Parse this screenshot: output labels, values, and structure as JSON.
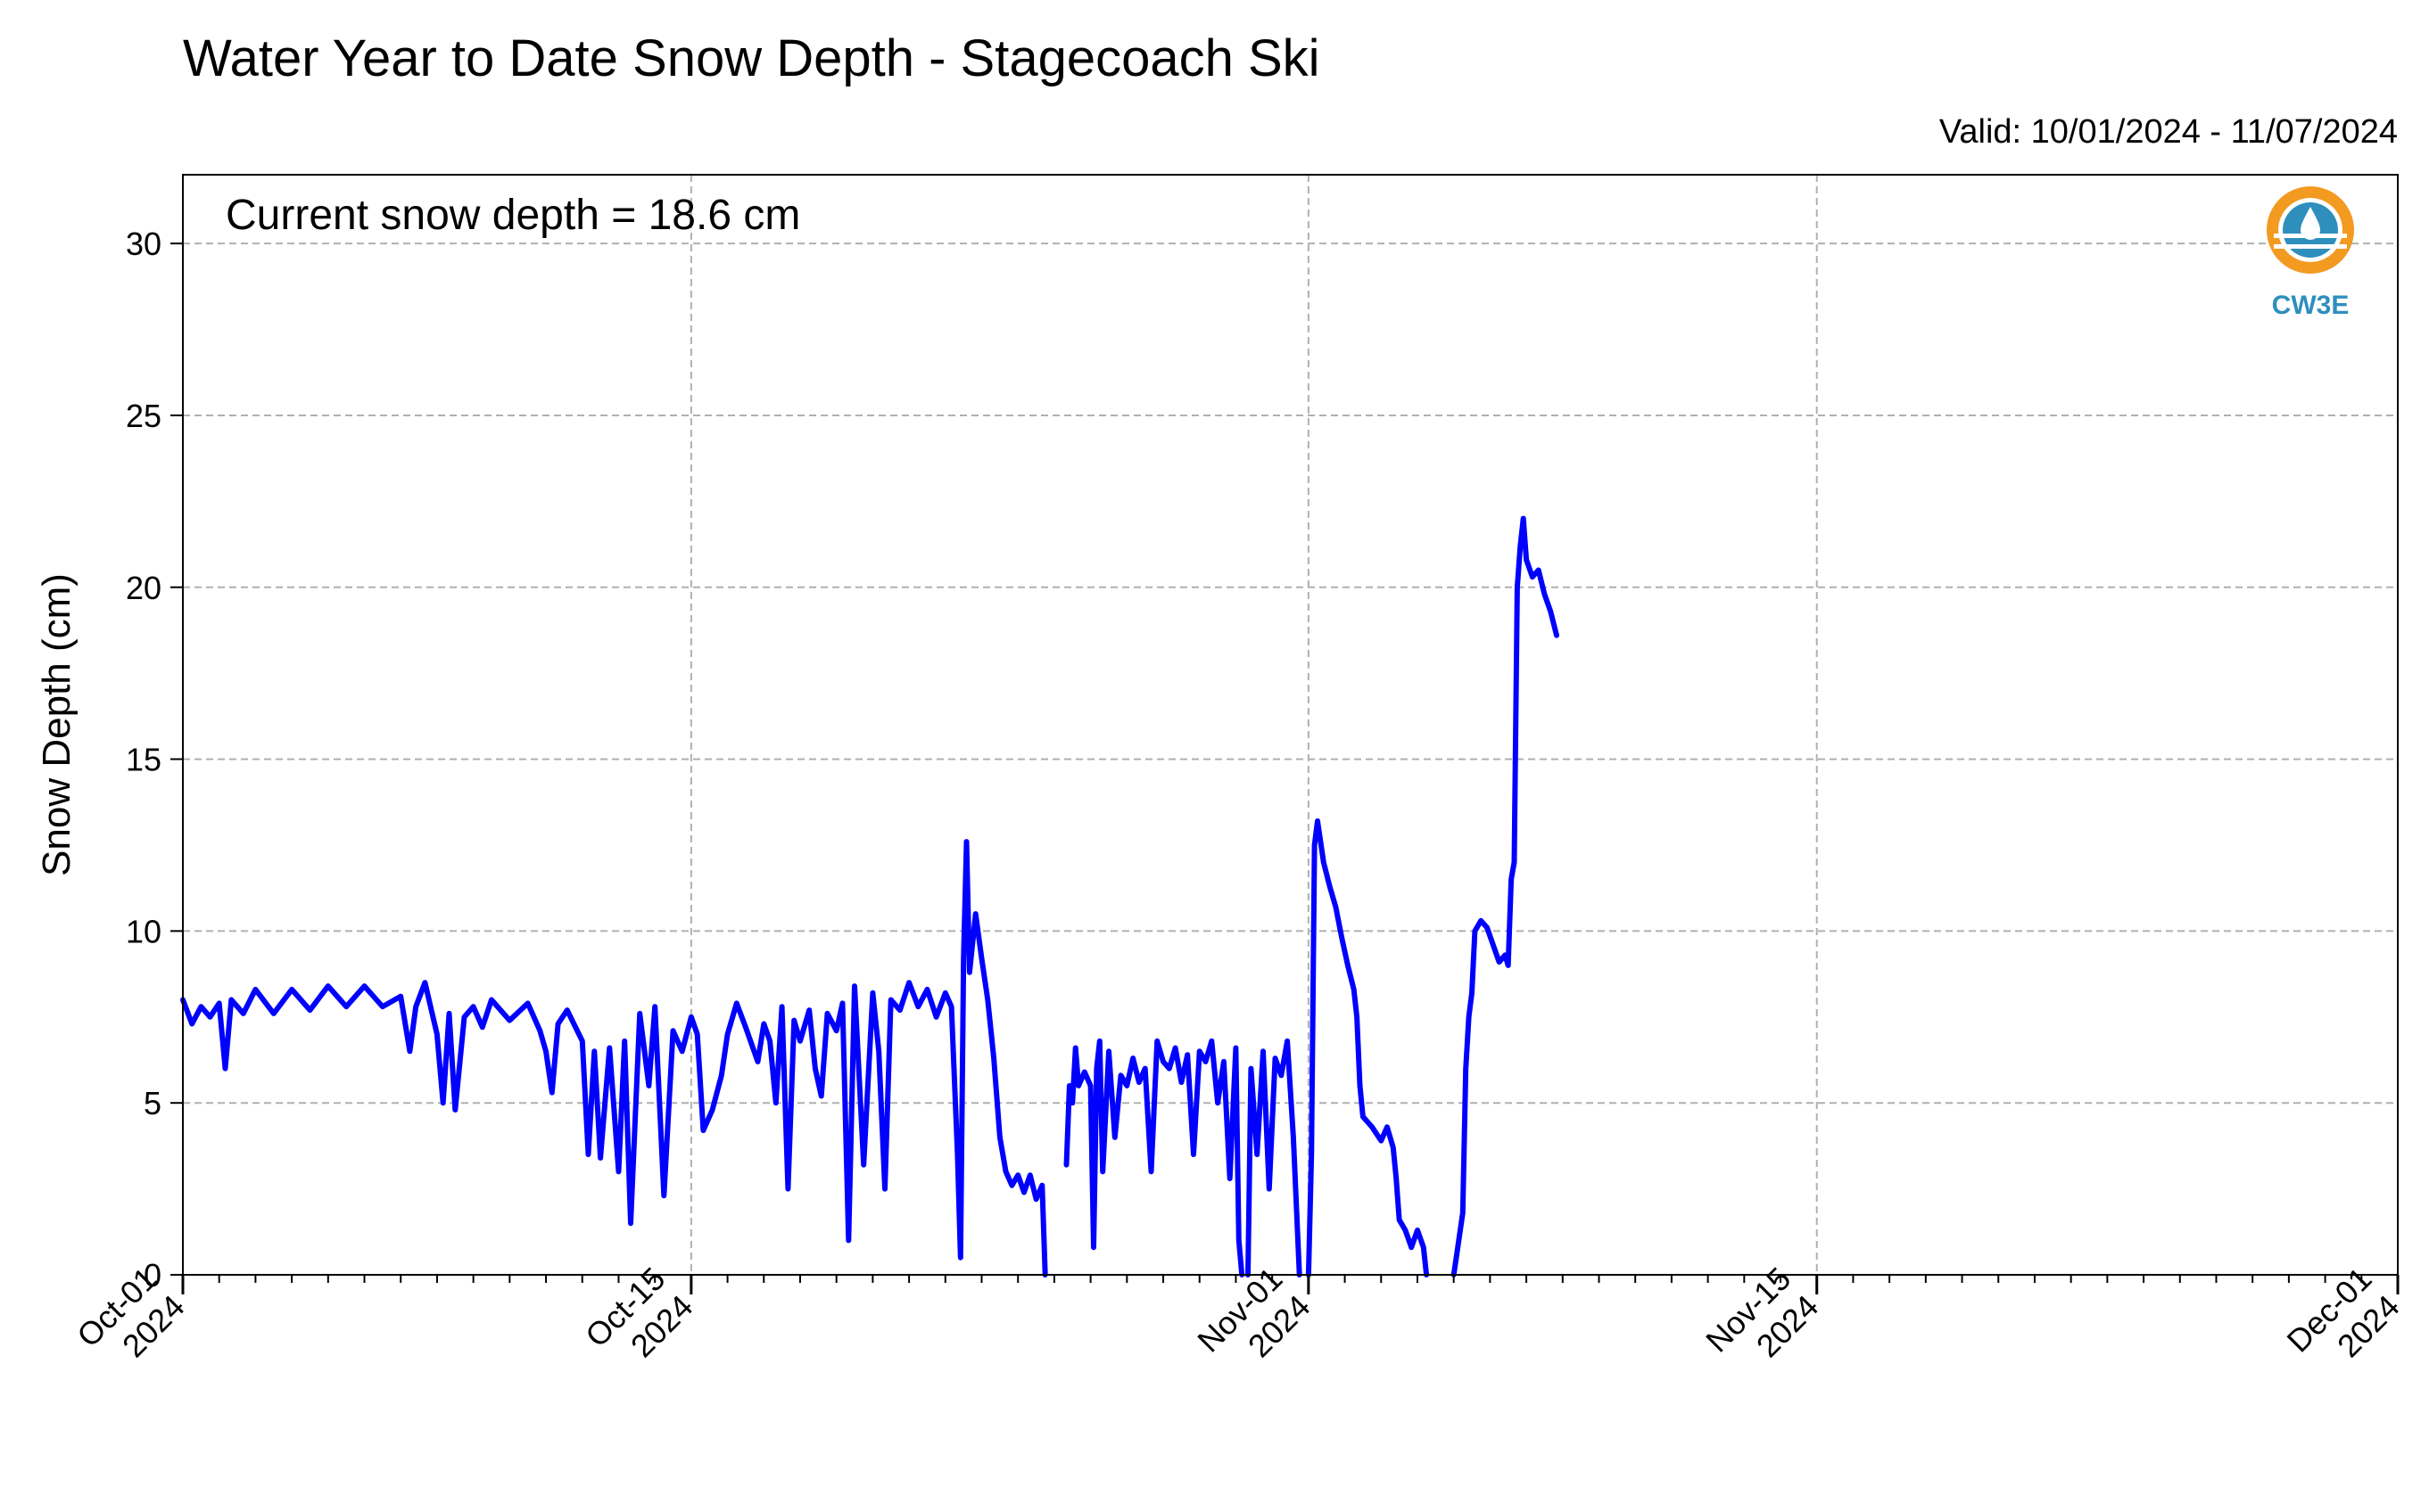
{
  "chart_data": {
    "type": "line",
    "title": "Water Year to Date Snow Depth - Stagecoach Ski",
    "valid_label": "Valid: 10/01/2024 - 11/07/2024",
    "ylabel": "Snow Depth (cm)",
    "xlabel": "",
    "annotation": "Current snow depth = 18.6 cm",
    "logo_text": "CW3E",
    "x_type": "date",
    "xlim": [
      "2024-10-01",
      "2024-12-01"
    ],
    "ylim": [
      0,
      32
    ],
    "yticks": [
      0,
      5,
      10,
      15,
      20,
      25,
      30
    ],
    "xtick_labels": [
      {
        "date": "2024-10-01",
        "label1": "Oct-01",
        "label2": "2024"
      },
      {
        "date": "2024-10-15",
        "label1": "Oct-15",
        "label2": "2024"
      },
      {
        "date": "2024-11-01",
        "label1": "Nov-01",
        "label2": "2024"
      },
      {
        "date": "2024-11-15",
        "label1": "Nov-15",
        "label2": "2024"
      },
      {
        "date": "2024-12-01",
        "label1": "Dec-01",
        "label2": "2024"
      }
    ],
    "grid": true,
    "line_color": "#0000ff",
    "series": [
      {
        "name": "",
        "segments": [
          [
            [
              "2024-10-01T00:00",
              8.0
            ],
            [
              "2024-10-01T06:00",
              7.3
            ],
            [
              "2024-10-01T12:00",
              7.8
            ],
            [
              "2024-10-01T18:00",
              7.5
            ],
            [
              "2024-10-02T00:00",
              7.9
            ],
            [
              "2024-10-02T04:00",
              6.0
            ],
            [
              "2024-10-02T08:00",
              8.0
            ],
            [
              "2024-10-02T16:00",
              7.6
            ],
            [
              "2024-10-03T00:00",
              8.3
            ],
            [
              "2024-10-03T12:00",
              7.6
            ],
            [
              "2024-10-04T00:00",
              8.3
            ],
            [
              "2024-10-04T12:00",
              7.7
            ],
            [
              "2024-10-05T00:00",
              8.4
            ],
            [
              "2024-10-05T12:00",
              7.8
            ],
            [
              "2024-10-06T00:00",
              8.4
            ],
            [
              "2024-10-06T12:00",
              7.8
            ],
            [
              "2024-10-07T00:00",
              8.1
            ],
            [
              "2024-10-07T06:00",
              6.5
            ],
            [
              "2024-10-07T10:00",
              7.8
            ],
            [
              "2024-10-07T16:00",
              8.5
            ],
            [
              "2024-10-08T00:00",
              7.0
            ],
            [
              "2024-10-08T04:00",
              5.0
            ],
            [
              "2024-10-08T08:00",
              7.6
            ],
            [
              "2024-10-08T12:00",
              4.8
            ],
            [
              "2024-10-08T18:00",
              7.5
            ],
            [
              "2024-10-09T00:00",
              7.8
            ],
            [
              "2024-10-09T06:00",
              7.2
            ],
            [
              "2024-10-09T12:00",
              8.0
            ],
            [
              "2024-10-10T00:00",
              7.4
            ],
            [
              "2024-10-10T12:00",
              7.9
            ],
            [
              "2024-10-10T20:00",
              7.1
            ],
            [
              "2024-10-11T00:00",
              6.5
            ],
            [
              "2024-10-11T04:00",
              5.3
            ],
            [
              "2024-10-11T08:00",
              7.3
            ],
            [
              "2024-10-11T14:00",
              7.7
            ],
            [
              "2024-10-12T00:00",
              6.8
            ],
            [
              "2024-10-12T04:00",
              3.5
            ],
            [
              "2024-10-12T08:00",
              6.5
            ],
            [
              "2024-10-12T12:00",
              3.4
            ],
            [
              "2024-10-12T18:00",
              6.6
            ],
            [
              "2024-10-13T00:00",
              3.0
            ],
            [
              "2024-10-13T04:00",
              6.8
            ],
            [
              "2024-10-13T08:00",
              1.5
            ],
            [
              "2024-10-13T14:00",
              7.6
            ],
            [
              "2024-10-13T20:00",
              5.5
            ],
            [
              "2024-10-14T00:00",
              7.8
            ],
            [
              "2024-10-14T06:00",
              2.3
            ],
            [
              "2024-10-14T12:00",
              7.1
            ],
            [
              "2024-10-14T18:00",
              6.5
            ],
            [
              "2024-10-15T00:00",
              7.5
            ],
            [
              "2024-10-15T04:00",
              7.0
            ],
            [
              "2024-10-15T08:00",
              4.2
            ],
            [
              "2024-10-15T14:00",
              4.8
            ],
            [
              "2024-10-15T20:00",
              5.8
            ],
            [
              "2024-10-16T00:00",
              7.0
            ],
            [
              "2024-10-16T06:00",
              7.9
            ],
            [
              "2024-10-16T12:00",
              7.2
            ],
            [
              "2024-10-16T20:00",
              6.2
            ],
            [
              "2024-10-17T00:00",
              7.3
            ],
            [
              "2024-10-17T04:00",
              6.8
            ],
            [
              "2024-10-17T08:00",
              5.0
            ],
            [
              "2024-10-17T12:00",
              7.8
            ],
            [
              "2024-10-17T16:00",
              2.5
            ],
            [
              "2024-10-17T20:00",
              7.4
            ],
            [
              "2024-10-18T00:00",
              6.8
            ],
            [
              "2024-10-18T06:00",
              7.7
            ],
            [
              "2024-10-18T10:00",
              6.0
            ],
            [
              "2024-10-18T14:00",
              5.2
            ],
            [
              "2024-10-18T18:00",
              7.6
            ],
            [
              "2024-10-19T00:00",
              7.1
            ],
            [
              "2024-10-19T04:00",
              7.9
            ],
            [
              "2024-10-19T08:00",
              1.0
            ],
            [
              "2024-10-19T12:00",
              8.4
            ],
            [
              "2024-10-19T18:00",
              3.2
            ],
            [
              "2024-10-20T00:00",
              8.2
            ],
            [
              "2024-10-20T04:00",
              6.5
            ],
            [
              "2024-10-20T08:00",
              2.5
            ],
            [
              "2024-10-20T12:00",
              8.0
            ],
            [
              "2024-10-20T18:00",
              7.7
            ],
            [
              "2024-10-21T00:00",
              8.5
            ],
            [
              "2024-10-21T06:00",
              7.8
            ],
            [
              "2024-10-21T12:00",
              8.3
            ],
            [
              "2024-10-21T18:00",
              7.5
            ],
            [
              "2024-10-22T00:00",
              8.2
            ],
            [
              "2024-10-22T04:00",
              7.8
            ],
            [
              "2024-10-22T08:00",
              3.5
            ],
            [
              "2024-10-22T10:00",
              0.5
            ],
            [
              "2024-10-22T12:00",
              9.2
            ],
            [
              "2024-10-22T14:00",
              12.6
            ],
            [
              "2024-10-22T16:00",
              8.8
            ],
            [
              "2024-10-22T20:00",
              10.5
            ],
            [
              "2024-10-23T00:00",
              9.2
            ],
            [
              "2024-10-23T04:00",
              8.0
            ],
            [
              "2024-10-23T08:00",
              6.3
            ],
            [
              "2024-10-23T12:00",
              4.0
            ],
            [
              "2024-10-23T16:00",
              3.0
            ],
            [
              "2024-10-23T20:00",
              2.6
            ],
            [
              "2024-10-24T00:00",
              2.9
            ],
            [
              "2024-10-24T04:00",
              2.4
            ],
            [
              "2024-10-24T08:00",
              2.9
            ],
            [
              "2024-10-24T12:00",
              2.2
            ],
            [
              "2024-10-24T16:00",
              2.6
            ],
            [
              "2024-10-24T18:00",
              0.0
            ]
          ],
          [
            [
              "2024-10-25T08:00",
              3.2
            ],
            [
              "2024-10-25T10:00",
              5.5
            ],
            [
              "2024-10-25T12:00",
              5.0
            ],
            [
              "2024-10-25T14:00",
              6.6
            ],
            [
              "2024-10-25T16:00",
              5.5
            ],
            [
              "2024-10-25T20:00",
              5.9
            ],
            [
              "2024-10-26T00:00",
              5.5
            ],
            [
              "2024-10-26T02:00",
              0.8
            ],
            [
              "2024-10-26T04:00",
              6.0
            ],
            [
              "2024-10-26T06:00",
              6.8
            ],
            [
              "2024-10-26T08:00",
              3.0
            ],
            [
              "2024-10-26T12:00",
              6.5
            ],
            [
              "2024-10-26T16:00",
              4.0
            ],
            [
              "2024-10-26T20:00",
              5.8
            ],
            [
              "2024-10-27T00:00",
              5.5
            ],
            [
              "2024-10-27T04:00",
              6.3
            ],
            [
              "2024-10-27T08:00",
              5.6
            ],
            [
              "2024-10-27T12:00",
              6.0
            ],
            [
              "2024-10-27T16:00",
              3.0
            ],
            [
              "2024-10-27T20:00",
              6.8
            ],
            [
              "2024-10-28T00:00",
              6.2
            ],
            [
              "2024-10-28T04:00",
              6.0
            ],
            [
              "2024-10-28T08:00",
              6.6
            ],
            [
              "2024-10-28T12:00",
              5.6
            ],
            [
              "2024-10-28T16:00",
              6.4
            ],
            [
              "2024-10-28T20:00",
              3.5
            ],
            [
              "2024-10-29T00:00",
              6.5
            ],
            [
              "2024-10-29T04:00",
              6.2
            ],
            [
              "2024-10-29T08:00",
              6.8
            ],
            [
              "2024-10-29T12:00",
              5.0
            ],
            [
              "2024-10-29T16:00",
              6.2
            ],
            [
              "2024-10-29T20:00",
              2.8
            ],
            [
              "2024-10-30T00:00",
              6.6
            ],
            [
              "2024-10-30T02:00",
              1.0
            ],
            [
              "2024-10-30T04:00",
              0.0
            ]
          ],
          [
            [
              "2024-10-30T08:00",
              0.0
            ],
            [
              "2024-10-30T10:00",
              6.0
            ],
            [
              "2024-10-30T14:00",
              3.5
            ],
            [
              "2024-10-30T18:00",
              6.5
            ],
            [
              "2024-10-30T22:00",
              2.5
            ],
            [
              "2024-10-31T02:00",
              6.3
            ],
            [
              "2024-10-31T06:00",
              5.8
            ],
            [
              "2024-10-31T10:00",
              6.8
            ],
            [
              "2024-10-31T14:00",
              4.0
            ],
            [
              "2024-10-31T16:00",
              2.0
            ],
            [
              "2024-10-31T18:00",
              0.0
            ]
          ],
          [
            [
              "2024-11-01T00:00",
              0.0
            ],
            [
              "2024-11-01T02:00",
              3.5
            ],
            [
              "2024-11-01T04:00",
              12.5
            ],
            [
              "2024-11-01T06:00",
              13.2
            ],
            [
              "2024-11-01T10:00",
              12.0
            ],
            [
              "2024-11-01T14:00",
              11.3
            ],
            [
              "2024-11-01T18:00",
              10.7
            ],
            [
              "2024-11-01T22:00",
              9.8
            ],
            [
              "2024-11-02T02:00",
              9.0
            ],
            [
              "2024-11-02T06:00",
              8.3
            ],
            [
              "2024-11-02T08:00",
              7.5
            ],
            [
              "2024-11-02T10:00",
              5.5
            ],
            [
              "2024-11-02T12:00",
              4.6
            ],
            [
              "2024-11-02T18:00",
              4.3
            ],
            [
              "2024-11-03T00:00",
              3.9
            ],
            [
              "2024-11-03T04:00",
              4.3
            ],
            [
              "2024-11-03T08:00",
              3.7
            ],
            [
              "2024-11-03T10:00",
              2.8
            ],
            [
              "2024-11-03T12:00",
              1.6
            ],
            [
              "2024-11-03T16:00",
              1.3
            ],
            [
              "2024-11-03T20:00",
              0.8
            ],
            [
              "2024-11-04T00:00",
              1.3
            ],
            [
              "2024-11-04T04:00",
              0.8
            ],
            [
              "2024-11-04T06:00",
              0.0
            ]
          ],
          [
            [
              "2024-11-05T00:00",
              0.0
            ],
            [
              "2024-11-05T02:00",
              0.6
            ],
            [
              "2024-11-05T06:00",
              1.8
            ],
            [
              "2024-11-05T08:00",
              6.0
            ],
            [
              "2024-11-05T10:00",
              7.5
            ],
            [
              "2024-11-05T12:00",
              8.2
            ],
            [
              "2024-11-05T14:00",
              10.0
            ],
            [
              "2024-11-05T18:00",
              10.3
            ],
            [
              "2024-11-05T22:00",
              10.1
            ],
            [
              "2024-11-06T02:00",
              9.6
            ],
            [
              "2024-11-06T06:00",
              9.1
            ],
            [
              "2024-11-06T10:00",
              9.3
            ],
            [
              "2024-11-06T12:00",
              9.0
            ],
            [
              "2024-11-06T14:00",
              11.5
            ],
            [
              "2024-11-06T16:00",
              12.0
            ],
            [
              "2024-11-06T18:00",
              20.0
            ],
            [
              "2024-11-06T20:00",
              21.2
            ],
            [
              "2024-11-06T22:00",
              22.0
            ],
            [
              "2024-11-07T00:00",
              20.8
            ],
            [
              "2024-11-07T04:00",
              20.3
            ],
            [
              "2024-11-07T08:00",
              20.5
            ],
            [
              "2024-11-07T12:00",
              19.8
            ],
            [
              "2024-11-07T16:00",
              19.3
            ],
            [
              "2024-11-07T20:00",
              18.6
            ]
          ]
        ]
      }
    ]
  }
}
